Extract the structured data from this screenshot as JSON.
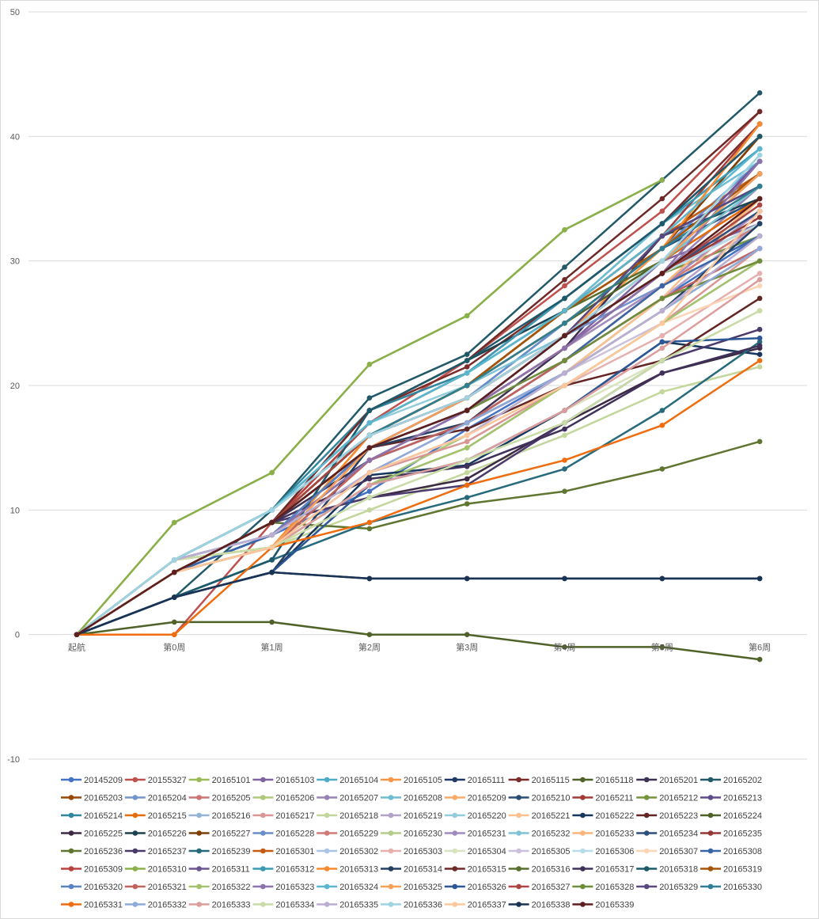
{
  "chart_data": {
    "type": "line",
    "title": "",
    "xlabel": "",
    "ylabel": "",
    "categories": [
      "起航",
      "第0周",
      "第1周",
      "第2周",
      "第3周",
      "第4周",
      "第5周",
      "第6周"
    ],
    "ylim": [
      -10,
      50
    ],
    "yticks": [
      "-10",
      "0",
      "10",
      "20",
      "30",
      "40",
      "50"
    ],
    "grid": true,
    "legend_position": "bottom",
    "series": [
      {
        "name": "20145209",
        "color": "#4472c4",
        "values": [
          0,
          6,
          8,
          11.5,
          16.5,
          21,
          27,
          32
        ]
      },
      {
        "name": "20155327",
        "color": "#c0504d",
        "values": [
          0,
          0,
          9,
          17,
          22,
          28,
          34,
          42
        ]
      },
      {
        "name": "20165101",
        "color": "#9bbb59",
        "values": [
          0,
          9,
          13,
          21.7,
          25.6,
          32.5,
          36.5,
          null
        ]
      },
      {
        "name": "20165103",
        "color": "#8064a2",
        "values": [
          0,
          5,
          8,
          14,
          18,
          23,
          30,
          33
        ]
      },
      {
        "name": "20165104",
        "color": "#4bacc6",
        "values": [
          0,
          6,
          10,
          17,
          21,
          26,
          33,
          39
        ]
      },
      {
        "name": "20165105",
        "color": "#f79646",
        "values": [
          0,
          5,
          7,
          15,
          19,
          24,
          31,
          40
        ]
      },
      {
        "name": "20165111",
        "color": "#1f3864",
        "values": [
          0,
          3,
          5,
          4.5,
          4.5,
          4.5,
          4.5,
          4.5
        ]
      },
      {
        "name": "20165115",
        "color": "#7b2c2a",
        "values": [
          0,
          5,
          9,
          18,
          21.5,
          27,
          33,
          41
        ]
      },
      {
        "name": "20165118",
        "color": "#4f6228",
        "values": [
          0,
          1,
          1,
          0,
          0,
          -1,
          -1,
          -2
        ]
      },
      {
        "name": "20165201",
        "color": "#3f3151",
        "values": [
          0,
          5,
          9,
          14,
          17,
          23,
          32,
          36
        ]
      },
      {
        "name": "20165202",
        "color": "#215968",
        "values": [
          0,
          3,
          10,
          19,
          22.5,
          29.5,
          36.5,
          43.5
        ]
      },
      {
        "name": "20165203",
        "color": "#984807",
        "values": [
          0,
          5,
          9,
          16,
          20,
          26,
          31,
          40
        ]
      },
      {
        "name": "20165204",
        "color": "#7394cd",
        "values": [
          0,
          6,
          8,
          15,
          18,
          24,
          28,
          33
        ]
      },
      {
        "name": "20165205",
        "color": "#cd7371",
        "values": [
          0,
          5,
          7,
          14,
          17,
          22,
          27,
          31
        ]
      },
      {
        "name": "20165206",
        "color": "#afc97a",
        "values": [
          0,
          6,
          7,
          12,
          16,
          21,
          27,
          30
        ]
      },
      {
        "name": "20165207",
        "color": "#9983b5",
        "values": [
          0,
          6,
          8,
          15,
          19,
          24,
          29,
          36
        ]
      },
      {
        "name": "20165208",
        "color": "#6fbdd1",
        "values": [
          0,
          6,
          10,
          17,
          21,
          26,
          33,
          38
        ]
      },
      {
        "name": "20165209",
        "color": "#f9ab6b",
        "values": [
          0,
          5,
          7,
          14,
          18,
          23,
          28,
          34
        ]
      },
      {
        "name": "20165210",
        "color": "#2c4d75",
        "values": [
          0,
          5,
          8,
          15,
          19,
          25,
          31,
          35
        ]
      },
      {
        "name": "20165211",
        "color": "#a33b38",
        "values": [
          0,
          5,
          9,
          16,
          20,
          26,
          32,
          41
        ]
      },
      {
        "name": "20165212",
        "color": "#77933c",
        "values": [
          0,
          5,
          9,
          15,
          19,
          24,
          29,
          32
        ]
      },
      {
        "name": "20165213",
        "color": "#5f4b8b",
        "values": [
          0,
          5,
          9,
          15,
          18,
          23,
          29,
          33
        ]
      },
      {
        "name": "20165214",
        "color": "#31859c",
        "values": [
          0,
          6,
          10,
          18,
          21,
          26,
          32,
          37
        ]
      },
      {
        "name": "20165215",
        "color": "#e46c0a",
        "values": [
          0,
          5,
          7,
          16,
          19,
          24,
          30,
          35
        ]
      },
      {
        "name": "20165216",
        "color": "#95b3d7",
        "values": [
          0,
          6,
          8,
          14,
          18,
          22,
          28,
          32
        ]
      },
      {
        "name": "20165217",
        "color": "#d99694",
        "values": [
          0,
          5,
          7,
          13,
          15.5,
          20,
          25,
          31
        ]
      },
      {
        "name": "20165218",
        "color": "#c3d69b",
        "values": [
          0,
          6,
          7,
          10,
          13,
          16,
          19.5,
          21.5
        ]
      },
      {
        "name": "20165219",
        "color": "#b3a2c7",
        "values": [
          0,
          6,
          8,
          14,
          17,
          22,
          27,
          33
        ]
      },
      {
        "name": "20165220",
        "color": "#93cddd",
        "values": [
          0,
          6,
          10,
          17,
          20,
          25,
          31,
          37
        ]
      },
      {
        "name": "20165221",
        "color": "#fac090",
        "values": [
          0,
          5,
          7,
          14,
          17,
          21,
          27,
          35
        ]
      },
      {
        "name": "20165222",
        "color": "#17365d",
        "values": [
          0,
          3,
          5,
          12.8,
          13.6,
          18,
          23.5,
          22.5
        ]
      },
      {
        "name": "20165223",
        "color": "#632523",
        "values": [
          0,
          5,
          9,
          15,
          16.5,
          20,
          22,
          27
        ]
      },
      {
        "name": "20165224",
        "color": "#4f6228",
        "values": [
          0,
          5,
          9,
          16,
          20,
          25,
          30,
          36
        ]
      },
      {
        "name": "20165225",
        "color": "#3c2a44",
        "values": [
          0,
          5,
          9,
          11,
          12.5,
          17,
          21,
          23
        ]
      },
      {
        "name": "20165226",
        "color": "#1d4350",
        "values": [
          0,
          3,
          6,
          18,
          22,
          26,
          32,
          35
        ]
      },
      {
        "name": "20165227",
        "color": "#7f3f06",
        "values": [
          0,
          5,
          9,
          16,
          20,
          25,
          31,
          40
        ]
      },
      {
        "name": "20165228",
        "color": "#6a8ecc",
        "values": [
          0,
          6,
          8,
          15,
          19,
          25,
          31,
          38
        ]
      },
      {
        "name": "20165229",
        "color": "#d27a77",
        "values": [
          0,
          5,
          7,
          13,
          17,
          22,
          28,
          33
        ]
      },
      {
        "name": "20165230",
        "color": "#b5cc88",
        "values": [
          0,
          6,
          7,
          13,
          16,
          21,
          26,
          31
        ]
      },
      {
        "name": "20165231",
        "color": "#a08cbf",
        "values": [
          0,
          6,
          8,
          14,
          18,
          23,
          28,
          34
        ]
      },
      {
        "name": "20165232",
        "color": "#7ec4d6",
        "values": [
          0,
          6,
          10,
          16,
          20,
          24,
          30,
          36
        ]
      },
      {
        "name": "20165233",
        "color": "#fbb47c",
        "values": [
          0,
          5,
          7,
          14,
          17,
          22,
          28,
          35
        ]
      },
      {
        "name": "20165234",
        "color": "#2e4f7f",
        "values": [
          0,
          5,
          8,
          15,
          19,
          24,
          29,
          34
        ]
      },
      {
        "name": "20165235",
        "color": "#953735",
        "values": [
          0,
          5,
          9,
          15,
          18,
          23,
          29,
          33.5
        ]
      },
      {
        "name": "20165236",
        "color": "#5f7530",
        "values": [
          0,
          5,
          9,
          8.5,
          10.5,
          11.5,
          13.3,
          15.5
        ]
      },
      {
        "name": "20165237",
        "color": "#4b3a6b",
        "values": [
          0,
          5,
          9,
          11,
          12,
          17,
          22,
          24.5
        ]
      },
      {
        "name": "20165239",
        "color": "#276a7c",
        "values": [
          0,
          3,
          6,
          9,
          11,
          13.3,
          18,
          23.5
        ]
      },
      {
        "name": "20165301",
        "color": "#c55a11",
        "values": [
          0,
          5,
          9,
          16,
          20,
          26,
          32,
          37
        ]
      },
      {
        "name": "20165302",
        "color": "#a9c4e4",
        "values": [
          0,
          6,
          8,
          14,
          17,
          22,
          27,
          31
        ]
      },
      {
        "name": "20165303",
        "color": "#e6b0ae",
        "values": [
          0,
          5,
          7,
          12,
          15,
          20,
          24,
          29
        ]
      },
      {
        "name": "20165304",
        "color": "#d7e4bd",
        "values": [
          0,
          6,
          7,
          12,
          14,
          18,
          22,
          26
        ]
      },
      {
        "name": "20165305",
        "color": "#ccc1da",
        "values": [
          0,
          6,
          8,
          13,
          16,
          21,
          25,
          30
        ]
      },
      {
        "name": "20165306",
        "color": "#b7dee8",
        "values": [
          0,
          6,
          10,
          16,
          19,
          24,
          29,
          33
        ]
      },
      {
        "name": "20165307",
        "color": "#fcd5b5",
        "values": [
          0,
          5,
          7,
          13,
          16,
          20,
          25,
          28
        ]
      },
      {
        "name": "20165308",
        "color": "#3a66a8",
        "values": [
          0,
          5,
          8,
          14,
          17,
          22,
          28,
          32
        ]
      },
      {
        "name": "20165309",
        "color": "#b8423f",
        "values": [
          0,
          5,
          9,
          17,
          21,
          27,
          33,
          40
        ]
      },
      {
        "name": "20165310",
        "color": "#8bb04a",
        "values": [
          0,
          9,
          13,
          21.7,
          25.6,
          32.5,
          36.5,
          null
        ]
      },
      {
        "name": "20165311",
        "color": "#6d5493",
        "values": [
          0,
          5,
          9,
          16,
          19,
          24,
          30,
          38
        ]
      },
      {
        "name": "20165312",
        "color": "#3a9bb5",
        "values": [
          0,
          6,
          10,
          17,
          21,
          27,
          33,
          39
        ]
      },
      {
        "name": "20165313",
        "color": "#f68a2f",
        "values": [
          0,
          5,
          7,
          16,
          20,
          25,
          31,
          41
        ]
      },
      {
        "name": "20165314",
        "color": "#243f60",
        "values": [
          0,
          3,
          5,
          15,
          17,
          21,
          26,
          33
        ]
      },
      {
        "name": "20165315",
        "color": "#6e2a28",
        "values": [
          0,
          5,
          9,
          18,
          22,
          28.5,
          35,
          42
        ]
      },
      {
        "name": "20165316",
        "color": "#586e2d",
        "values": [
          0,
          5,
          9,
          16,
          20,
          26,
          30,
          37
        ]
      },
      {
        "name": "20165317",
        "color": "#40315a",
        "values": [
          0,
          5,
          9,
          12.5,
          13.5,
          16.5,
          21,
          23.2
        ]
      },
      {
        "name": "20165318",
        "color": "#1c5a6b",
        "values": [
          0,
          3,
          6,
          18,
          22,
          27,
          33,
          40
        ]
      },
      {
        "name": "20165319",
        "color": "#a65408",
        "values": [
          0,
          5,
          9,
          16,
          20,
          26,
          31,
          37
        ]
      },
      {
        "name": "20165320",
        "color": "#5a82c0",
        "values": [
          0,
          6,
          8,
          15,
          18,
          24,
          30,
          37
        ]
      },
      {
        "name": "20165321",
        "color": "#c2625f",
        "values": [
          0,
          5,
          7,
          14,
          17,
          22,
          27,
          31
        ]
      },
      {
        "name": "20165322",
        "color": "#a2c26b",
        "values": [
          0,
          6,
          7,
          12,
          15,
          20,
          25,
          30
        ]
      },
      {
        "name": "20165323",
        "color": "#8d73ab",
        "values": [
          0,
          6,
          8,
          14,
          18,
          23,
          29,
          38
        ]
      },
      {
        "name": "20165324",
        "color": "#5cb6cd",
        "values": [
          0,
          6,
          10,
          17,
          21,
          26,
          32,
          39
        ]
      },
      {
        "name": "20165325",
        "color": "#f7a05a",
        "values": [
          0,
          5,
          7,
          15,
          19,
          24,
          30,
          37
        ]
      },
      {
        "name": "20165326",
        "color": "#2b5797",
        "values": [
          0,
          3,
          5,
          12,
          14,
          18,
          23.5,
          23.8
        ]
      },
      {
        "name": "20165327",
        "color": "#a94745",
        "values": [
          0,
          5,
          9,
          16,
          19,
          24,
          29,
          34.5
        ]
      },
      {
        "name": "20165328",
        "color": "#6f8c3a",
        "values": [
          0,
          5,
          9,
          15,
          18,
          22,
          27,
          30
        ]
      },
      {
        "name": "20165329",
        "color": "#59487f",
        "values": [
          0,
          5,
          9,
          15,
          18,
          24,
          32,
          36
        ]
      },
      {
        "name": "20165330",
        "color": "#2f7f93",
        "values": [
          0,
          6,
          10,
          16,
          20,
          25,
          31,
          36
        ]
      },
      {
        "name": "20165331",
        "color": "#ef6c0f",
        "values": [
          0,
          0,
          7,
          9,
          12,
          14,
          16.8,
          22
        ]
      },
      {
        "name": "20165332",
        "color": "#8eaadb",
        "values": [
          0,
          6,
          8,
          13,
          17,
          21,
          26,
          31
        ]
      },
      {
        "name": "20165333",
        "color": "#dc9e9c",
        "values": [
          0,
          5,
          7,
          12,
          14,
          18,
          23,
          28.5
        ]
      },
      {
        "name": "20165334",
        "color": "#c9dba6",
        "values": [
          0,
          6,
          7,
          11,
          14,
          17,
          22,
          26
        ]
      },
      {
        "name": "20165335",
        "color": "#bcaed0",
        "values": [
          0,
          6,
          8,
          13,
          16,
          21,
          26,
          32
        ]
      },
      {
        "name": "20165336",
        "color": "#9ed3e1",
        "values": [
          0,
          6,
          10,
          16,
          19,
          24,
          30,
          38.5
        ]
      },
      {
        "name": "20165337",
        "color": "#fbc89d",
        "values": [
          0,
          5,
          7,
          13,
          16,
          20,
          25,
          34
        ]
      },
      {
        "name": "20165338",
        "color": "#1a3353",
        "values": [
          0,
          3,
          5,
          4.5,
          4.5,
          4.5,
          4.5,
          4.5
        ]
      },
      {
        "name": "20165339",
        "color": "#5c1f1d",
        "values": [
          0,
          5,
          9,
          15,
          18,
          24,
          29,
          35
        ]
      }
    ]
  }
}
